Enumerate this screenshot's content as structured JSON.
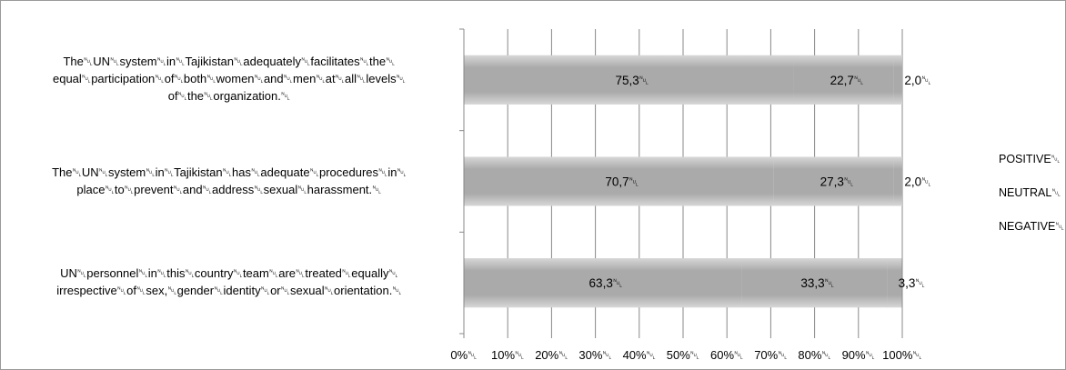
{
  "chart_data": {
    "type": "bar",
    "orientation": "horizontal",
    "stacked": "percent",
    "categories": [
      "The␀UN␀system␀in␀Tajikistan␀adequately␀facilitates␀the␀ equal␀participation␀of␀both␀women␀and␀men␀at␀all␀levels␀ of␀the␀organization.␀",
      "The␀UN␀system␀in␀Tajikistan␀has␀adequate␀procedures␀in␀ place␀to␀prevent␀and␀address␀sexual␀harassment.␀",
      "UN␀personnel␀in␀this␀country␀team␀are␀treated␀equally␀ irrespective␀of␀sex,␀gender␀identity␀or␀sexual␀orientation.␀"
    ],
    "category_lines": [
      [
        "The␀UN␀system␀in␀Tajikistan␀adequately␀facilitates␀the␀",
        "equal␀participation␀of␀both␀women␀and␀men␀at␀all␀levels␀",
        "of␀the␀organization.␀"
      ],
      [
        "The␀UN␀system␀in␀Tajikistan␀has␀adequate␀procedures␀in␀",
        "place␀to␀prevent␀and␀address␀sexual␀harassment.␀"
      ],
      [
        "UN␀personnel␀in␀this␀country␀team␀are␀treated␀equally␀",
        "irrespective␀of␀sex,␀gender␀identity␀or␀sexual␀orientation.␀"
      ]
    ],
    "series": [
      {
        "name": "POSITIVE␀",
        "values": [
          75.3,
          70.7,
          63.3
        ],
        "labels": [
          "75,3␀",
          "70,7␀",
          "63,3␀"
        ],
        "color": "#a6a6a6"
      },
      {
        "name": "NEUTRAL␀",
        "values": [
          22.7,
          27.3,
          33.3
        ],
        "labels": [
          "22,7␀",
          "27,3␀",
          "33,3␀"
        ],
        "color": "#a6a6a6"
      },
      {
        "name": "NEGATIVE␀",
        "values": [
          2.0,
          2.0,
          3.3
        ],
        "labels": [
          "2,0␀",
          "2,0␀",
          "3,3␀"
        ],
        "color": "#a6a6a6"
      }
    ],
    "x_ticks": [
      "0%␀",
      "10%␀",
      "20%␀",
      "30%␀",
      "40%␀",
      "50%␀",
      "60%␀",
      "70%␀",
      "80%␀",
      "90%␀",
      "100%␀"
    ],
    "xlim": [
      0,
      100
    ],
    "grid": true,
    "legend": "right",
    "colors": {
      "bar": "#a6a6a6",
      "grid": "#888888",
      "axis": "#888888",
      "frame": "#9a9a9a"
    }
  }
}
